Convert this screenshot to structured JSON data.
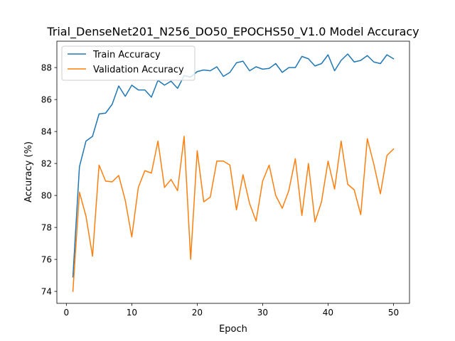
{
  "chart_data": {
    "type": "line",
    "title": "Trial_DenseNet201_N256_DO50_EPOCHS50_V1.0 Model Accuracy",
    "xlabel": "Epoch",
    "ylabel": "Accuracy (%)",
    "xlim": [
      -1.45,
      52.45
    ],
    "ylim": [
      73.25,
      89.65
    ],
    "xticks": [
      0,
      10,
      20,
      30,
      40,
      50
    ],
    "yticks": [
      74,
      76,
      78,
      80,
      82,
      84,
      86,
      88
    ],
    "grid": false,
    "legend": "top-left",
    "x": [
      1,
      2,
      3,
      4,
      5,
      6,
      7,
      8,
      9,
      10,
      11,
      12,
      13,
      14,
      15,
      16,
      17,
      18,
      19,
      20,
      21,
      22,
      23,
      24,
      25,
      26,
      27,
      28,
      29,
      30,
      31,
      32,
      33,
      34,
      35,
      36,
      37,
      38,
      39,
      40,
      41,
      42,
      43,
      44,
      45,
      46,
      47,
      48,
      49,
      50
    ],
    "series": [
      {
        "name": "Train Accuracy",
        "color": "#1f77b4",
        "values": [
          74.9,
          81.8,
          83.4,
          83.7,
          85.1,
          85.15,
          85.7,
          86.85,
          86.2,
          86.9,
          86.6,
          86.6,
          86.15,
          87.2,
          86.9,
          87.15,
          86.7,
          87.5,
          87.4,
          87.75,
          87.85,
          87.8,
          88.05,
          87.45,
          87.7,
          88.3,
          88.4,
          87.8,
          88.05,
          87.9,
          87.95,
          88.25,
          87.7,
          88.0,
          88.0,
          88.7,
          88.55,
          88.1,
          88.25,
          88.8,
          87.8,
          88.45,
          88.85,
          88.35,
          88.45,
          88.75,
          88.35,
          88.25,
          88.8,
          88.55
        ]
      },
      {
        "name": "Validation Accuracy",
        "color": "#ff7f0e",
        "values": [
          74.0,
          80.2,
          78.7,
          76.2,
          81.9,
          80.9,
          80.85,
          81.25,
          79.7,
          77.4,
          80.5,
          81.55,
          81.4,
          83.4,
          80.5,
          81.0,
          80.3,
          83.7,
          76.0,
          82.8,
          79.6,
          79.9,
          82.15,
          82.15,
          81.9,
          79.1,
          81.3,
          79.5,
          78.4,
          80.9,
          81.9,
          80.0,
          79.2,
          80.3,
          82.3,
          78.75,
          82.0,
          78.35,
          79.6,
          82.15,
          80.4,
          83.4,
          80.7,
          80.35,
          78.8,
          83.55,
          81.95,
          80.1,
          82.5,
          82.9
        ]
      }
    ]
  }
}
